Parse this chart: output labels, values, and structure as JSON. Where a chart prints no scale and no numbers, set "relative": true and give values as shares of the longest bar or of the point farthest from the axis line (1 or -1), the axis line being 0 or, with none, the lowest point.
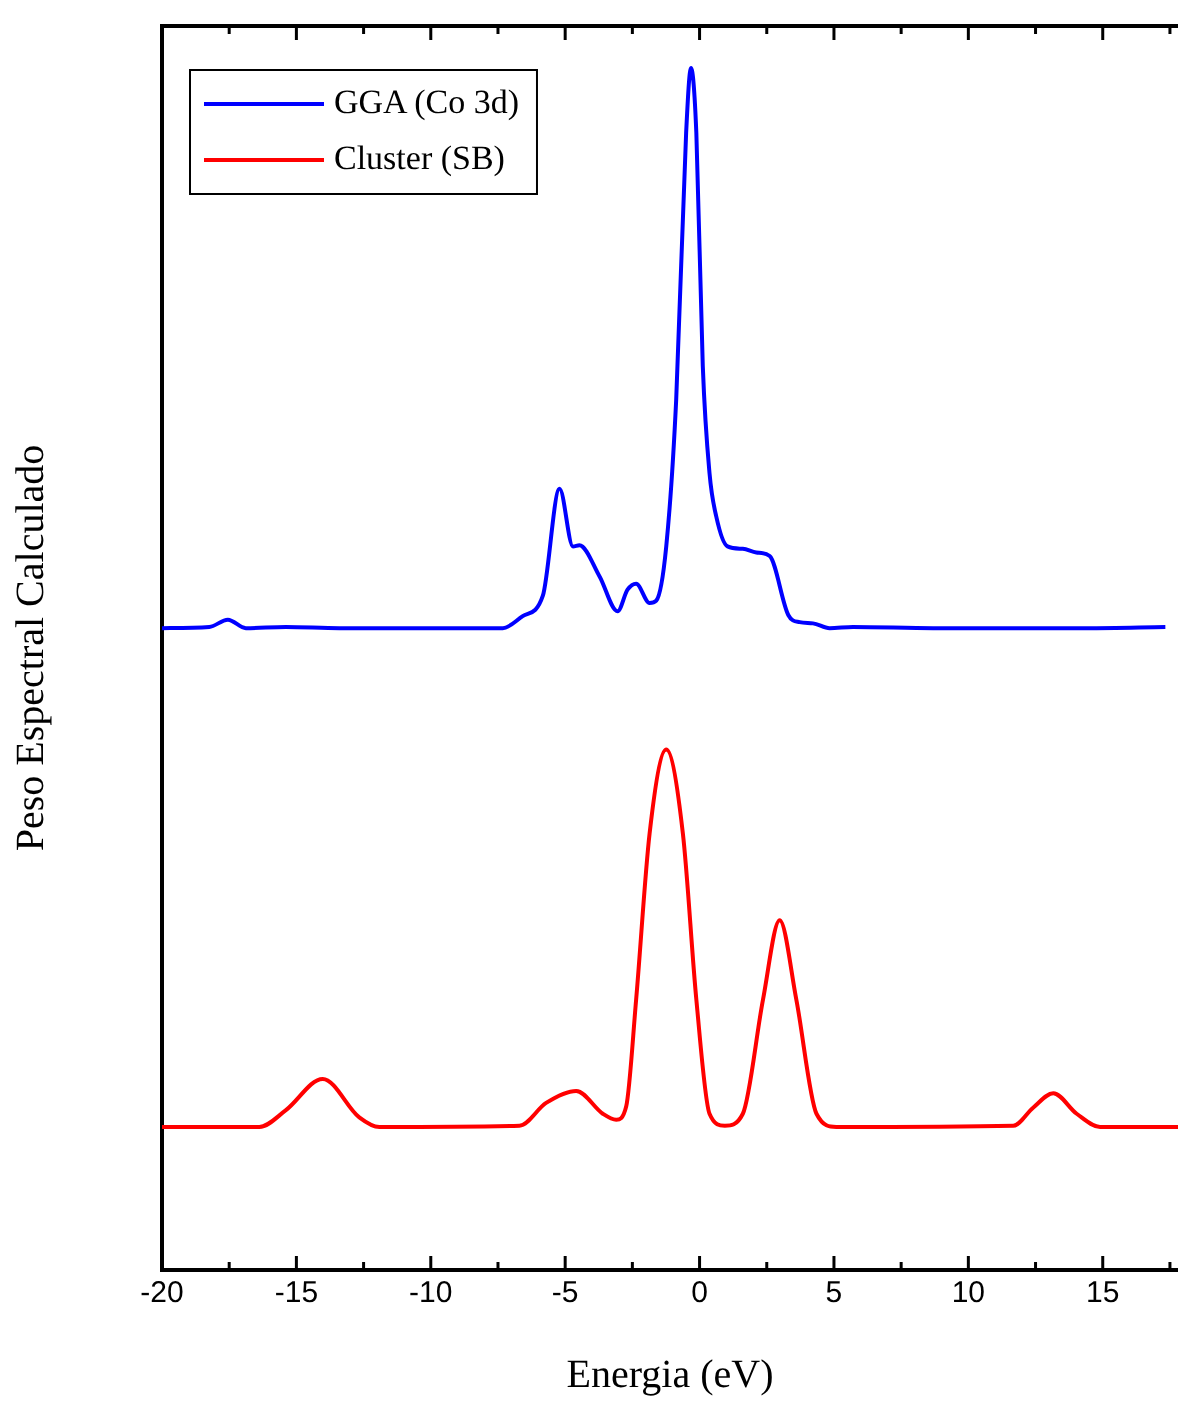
{
  "chart_data": {
    "type": "line",
    "xlabel": "Energia (eV)",
    "ylabel": "Peso Espectral Calculado",
    "relative": true,
    "xlim": [
      -20,
      17.8
    ],
    "xticks": [
      -20,
      {
        "value": -17.5,
        "label": null
      },
      -15,
      {
        "value": -12.5,
        "label": null
      },
      -10,
      {
        "value": -7.5,
        "label": null
      },
      -5,
      {
        "value": -2.5,
        "label": null
      },
      0,
      {
        "value": 2.5,
        "label": null
      },
      5,
      {
        "value": 7.5,
        "label": null
      },
      10,
      {
        "value": 12.5,
        "label": null
      },
      15,
      {
        "value": 17.5,
        "label": null
      }
    ],
    "grid": false,
    "legend": "top left",
    "marker": "none",
    "line_style": "solid",
    "series": [
      {
        "name": "GGA (Co 3d)",
        "color": "#0000ff",
        "x": [
          -20,
          -18.24,
          -17.55,
          -16.88,
          -15.39,
          -13.4,
          -7.32,
          -6.58,
          -5.83,
          -5.21,
          -4.71,
          -4.47,
          -3.72,
          -3.05,
          -2.68,
          -2.36,
          -1.86,
          -1.61,
          -1.24,
          -0.87,
          -0.5,
          -0.32,
          -0.12,
          0.12,
          0.37,
          0.62,
          1.04,
          1.61,
          2.11,
          2.61,
          3.3,
          3.72,
          4.22,
          4.84,
          5.71,
          8.69,
          14.4,
          17.33
        ],
        "values": [
          0.534,
          0.535,
          0.541,
          0.534,
          0.535,
          0.534,
          0.534,
          0.544,
          0.561,
          0.65,
          0.602,
          0.603,
          0.577,
          0.548,
          0.566,
          0.571,
          0.555,
          0.557,
          0.602,
          0.724,
          0.946,
          1.0,
          0.946,
          0.752,
          0.663,
          0.627,
          0.602,
          0.6,
          0.597,
          0.594,
          0.545,
          0.539,
          0.538,
          0.534,
          0.535,
          0.534,
          0.534,
          0.535
        ]
      },
      {
        "name": "Cluster (SB)",
        "color": "#ff0000",
        "x": [
          -20,
          -16.38,
          -15.39,
          -14.02,
          -12.66,
          -11.91,
          -6.7,
          -5.71,
          -4.59,
          -3.6,
          -3.1,
          -2.73,
          -2.36,
          -1.86,
          -1.24,
          -0.62,
          -0.12,
          0.37,
          0.94,
          1.61,
          2.36,
          2.98,
          3.6,
          4.35,
          5.09,
          11.67,
          12.41,
          13.16,
          14.03,
          14.9,
          17.8
        ],
        "values": [
          0.119,
          0.119,
          0.133,
          0.159,
          0.127,
          0.119,
          0.12,
          0.139,
          0.149,
          0.13,
          0.125,
          0.136,
          0.225,
          0.363,
          0.433,
          0.363,
          0.225,
          0.13,
          0.12,
          0.13,
          0.225,
          0.291,
          0.225,
          0.13,
          0.119,
          0.12,
          0.135,
          0.147,
          0.13,
          0.119,
          0.119
        ]
      }
    ]
  }
}
